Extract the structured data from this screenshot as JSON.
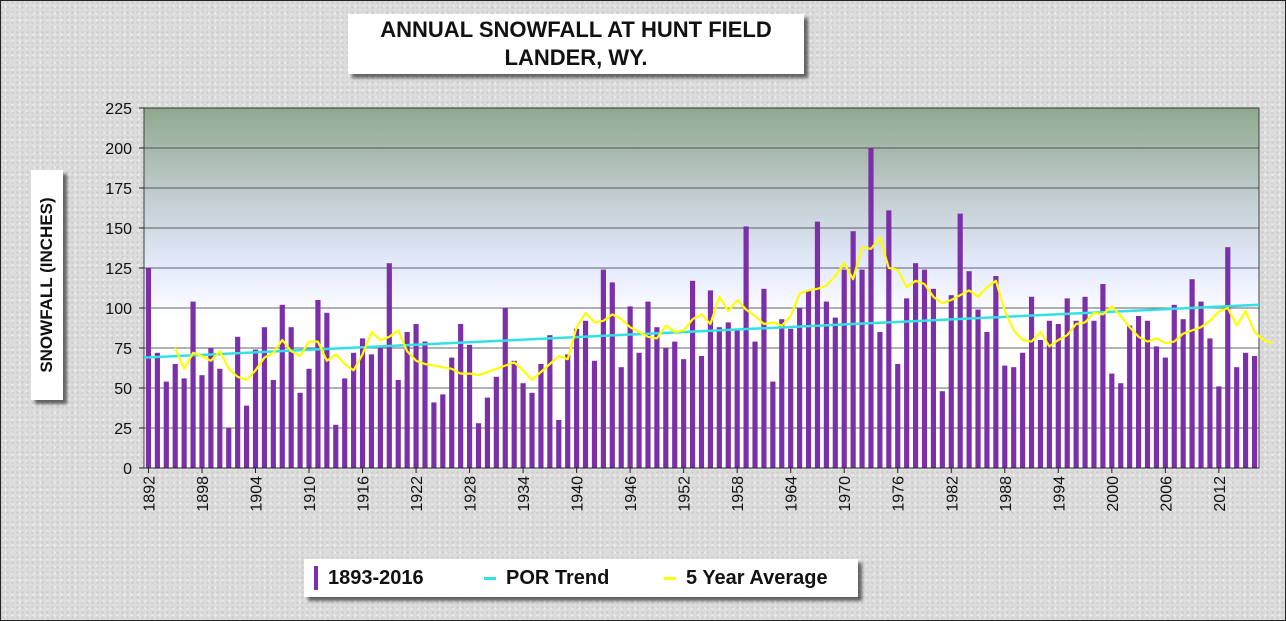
{
  "chart_data": {
    "type": "bar",
    "title": [
      "ANNUAL SNOWFALL AT HUNT FIELD",
      "LANDER, WY."
    ],
    "ylabel": "SNOWFALL (INCHES)",
    "xlabel": "",
    "ylim": [
      0,
      225
    ],
    "yticks": [
      0,
      25,
      50,
      75,
      100,
      125,
      150,
      175,
      200,
      225
    ],
    "xticks": [
      1892,
      1898,
      1904,
      1910,
      1916,
      1922,
      1928,
      1934,
      1940,
      1946,
      1952,
      1958,
      1964,
      1970,
      1976,
      1982,
      1988,
      1994,
      2000,
      2006,
      2012
    ],
    "x_start_year": 1892,
    "grid": "horizontal",
    "legend_position": "bottom",
    "colors": {
      "bars": "#7b2fa8",
      "trend": "#33e0e6",
      "average": "#ffff00",
      "grid": "#333333"
    },
    "legend": {
      "bars": "1893-2016",
      "trend": "POR Trend",
      "average": "5 Year Average"
    },
    "series": [
      {
        "type": "bar",
        "values": [
          125,
          72,
          54,
          65,
          56,
          104,
          58,
          75,
          62,
          25,
          82,
          39,
          74,
          88,
          55,
          102,
          88,
          47,
          62,
          105,
          97,
          27,
          56,
          72,
          81,
          71,
          75,
          128,
          55,
          85,
          90,
          79,
          41,
          46,
          69,
          90,
          77,
          28,
          44,
          57,
          100,
          67,
          53,
          47,
          65,
          83,
          30,
          71,
          87,
          92,
          67,
          124,
          116,
          63,
          101,
          72,
          104,
          88,
          75,
          79,
          68,
          117,
          70,
          111,
          88,
          91,
          86,
          151,
          79,
          112,
          54,
          93,
          87,
          100,
          111,
          154,
          104,
          94,
          124,
          148,
          124,
          200,
          85,
          161,
          65,
          106,
          128,
          124,
          112,
          48,
          108,
          159,
          123,
          99,
          85,
          120,
          64,
          63,
          72,
          107,
          80,
          92,
          90,
          106,
          92,
          107,
          92,
          115,
          59,
          53,
          89,
          95,
          92,
          76,
          69,
          102,
          93,
          118,
          104,
          81,
          51,
          138,
          63,
          72,
          70
        ]
      },
      {
        "type": "line",
        "start_year": 1895,
        "values": [
          75,
          62,
          72,
          70,
          67,
          73,
          62,
          57,
          55,
          61,
          69,
          72,
          80,
          73,
          70,
          79,
          79,
          67,
          71,
          65,
          61,
          71,
          85,
          80,
          82,
          86,
          73,
          67,
          65,
          64,
          63,
          62,
          59,
          59,
          58,
          60,
          62,
          64,
          66,
          61,
          55,
          60,
          65,
          70,
          68,
          88,
          97,
          91,
          92,
          96,
          93,
          88,
          85,
          82,
          81,
          89,
          85,
          86,
          93,
          96,
          90,
          107,
          98,
          105,
          99,
          95,
          90,
          91,
          89,
          95,
          109,
          111,
          112,
          114,
          120,
          128,
          118,
          138,
          137,
          144,
          125,
          124,
          113,
          117,
          115,
          107,
          103,
          105,
          108,
          111,
          107,
          113,
          117,
          98,
          86,
          80,
          79,
          85,
          76,
          80,
          83,
          90,
          91,
          97,
          96,
          101,
          95,
          88,
          82,
          79,
          81,
          78,
          79,
          84,
          86,
          88,
          92,
          98,
          100,
          89,
          98,
          85,
          80,
          78
        ]
      },
      {
        "type": "trend",
        "start": [
          1892,
          69
        ],
        "end": [
          2016,
          102
        ]
      }
    ]
  }
}
